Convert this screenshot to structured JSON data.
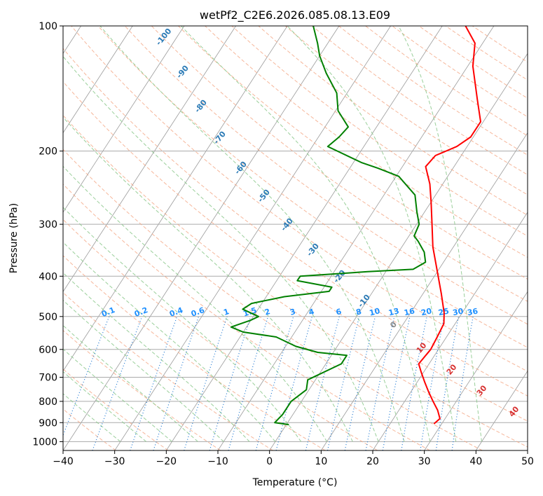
{
  "chart_data": {
    "type": "line",
    "title": "wetPf2_C2E6.2026.085.08.13.E09",
    "xlabel": "Temperature (°C)",
    "ylabel": "Pressure (hPa)",
    "xlim": [
      -40,
      50
    ],
    "ylim": [
      1050,
      100
    ],
    "y_scale": "log",
    "grid": true,
    "x_ticks": [
      "−40",
      "−30",
      "−20",
      "−10",
      "0",
      "10",
      "20",
      "30",
      "40",
      "50"
    ],
    "y_ticks": [
      "100",
      "200",
      "300",
      "400",
      "500",
      "600",
      "700",
      "800",
      "900",
      "1000"
    ],
    "series": [
      {
        "role": "temperature",
        "color": "#ff0000",
        "points": [
          [
            28.5,
            906
          ],
          [
            29.0,
            880
          ],
          [
            27.5,
            840
          ],
          [
            25.5,
            800
          ],
          [
            23.5,
            760
          ],
          [
            21.5,
            720
          ],
          [
            19.5,
            680
          ],
          [
            18.0,
            650
          ],
          [
            18.3,
            620
          ],
          [
            18.5,
            600
          ],
          [
            18.2,
            560
          ],
          [
            17.8,
            520
          ],
          [
            16.5,
            490
          ],
          [
            13.5,
            440
          ],
          [
            10.0,
            390
          ],
          [
            6.0,
            340
          ],
          [
            3.0,
            300
          ],
          [
            0.0,
            265
          ],
          [
            -2.5,
            240
          ],
          [
            -5.5,
            218
          ],
          [
            -5.0,
            205
          ],
          [
            -2.0,
            195
          ],
          [
            -0.5,
            185
          ],
          [
            -0.5,
            170
          ],
          [
            -4.0,
            150
          ],
          [
            -9.0,
            125
          ],
          [
            -11.5,
            110
          ],
          [
            -15.5,
            100
          ]
        ]
      },
      {
        "role": "dewpoint",
        "color": "#008000",
        "points": [
          [
            0.5,
            910
          ],
          [
            -2.5,
            900
          ],
          [
            -2.0,
            860
          ],
          [
            -2.0,
            800
          ],
          [
            -0.5,
            750
          ],
          [
            -1.5,
            710
          ],
          [
            3.0,
            650
          ],
          [
            3.0,
            620
          ],
          [
            -3.0,
            610
          ],
          [
            -8.0,
            590
          ],
          [
            -13.0,
            560
          ],
          [
            -20.0,
            545
          ],
          [
            -23.0,
            530
          ],
          [
            -20.0,
            510
          ],
          [
            -19.0,
            500
          ],
          [
            -23.0,
            480
          ],
          [
            -22.0,
            465
          ],
          [
            -16.5,
            448
          ],
          [
            -8.5,
            435
          ],
          [
            -8.5,
            425
          ],
          [
            -16.0,
            410
          ],
          [
            -16.0,
            400
          ],
          [
            -3.5,
            390
          ],
          [
            5.0,
            385
          ],
          [
            6.5,
            370
          ],
          [
            5.0,
            350
          ],
          [
            2.5,
            330
          ],
          [
            1.0,
            320
          ],
          [
            0.5,
            300
          ],
          [
            -1.5,
            280
          ],
          [
            -4.0,
            255
          ],
          [
            -9.5,
            230
          ],
          [
            -14.5,
            220
          ],
          [
            -18.5,
            213
          ],
          [
            -27.0,
            195
          ],
          [
            -26.0,
            185
          ],
          [
            -25.5,
            175
          ],
          [
            -29.5,
            160
          ],
          [
            -32.0,
            145
          ],
          [
            -36.5,
            130
          ],
          [
            -40.0,
            118
          ],
          [
            -42.0,
            110
          ],
          [
            -45.0,
            100
          ]
        ]
      }
    ],
    "dry_adiabat_labels": [
      "-100",
      "-90",
      "-80",
      "-70",
      "-60",
      "-50",
      "-40",
      "-30",
      "-20",
      "-10",
      "0",
      "10",
      "20",
      "30",
      "40"
    ],
    "mixing_ratio_labels": [
      "0.1",
      "0.2",
      "0.4",
      "0.6",
      "1",
      "1.5",
      "2",
      "3",
      "4",
      "6",
      "8",
      "10",
      "13",
      "16",
      "20",
      "25",
      "30",
      "36"
    ],
    "colors": {
      "isotherm": "#9a9a9a",
      "isobar": "#aaaaaa",
      "dry_adiabat": "#f4a582",
      "moist_adiabat": "#8fca8f",
      "mixing_ratio": "#1f78d1",
      "dry_label_cold": "#2c7bb6",
      "dry_label_warm": "#d7302f",
      "zero_label": "#888888",
      "mixing_label": "#1e90ff"
    }
  }
}
